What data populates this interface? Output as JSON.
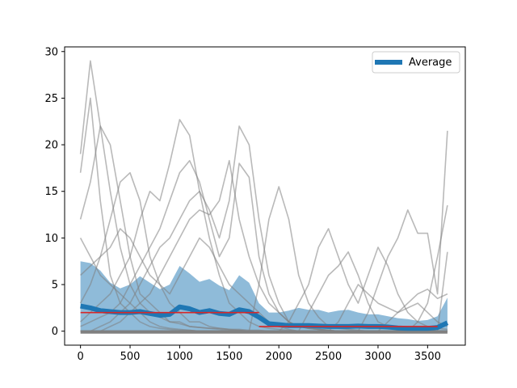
{
  "chart_data": {
    "type": "line",
    "title": "",
    "xlabel": "",
    "ylabel": "",
    "xlim": [
      -160,
      3880
    ],
    "ylim": [
      -1.5,
      30.5
    ],
    "xticks": [
      0,
      500,
      1000,
      1500,
      2000,
      2500,
      3000,
      3500
    ],
    "yticks": [
      0,
      5,
      10,
      15,
      20,
      25,
      30
    ],
    "xtick_labels": [
      "0",
      "500",
      "1000",
      "1500",
      "2000",
      "2500",
      "3000",
      "3500"
    ],
    "ytick_labels": [
      "0",
      "5",
      "10",
      "15",
      "20",
      "25",
      "30"
    ],
    "grid": false,
    "legend": {
      "position": "upper right",
      "entries": [
        "Average"
      ]
    },
    "colors": {
      "average": "#1f77b4",
      "band": "#1f77b4",
      "individual": "#808080",
      "segment": "#d62728"
    },
    "x": [
      0,
      100,
      200,
      300,
      400,
      500,
      600,
      700,
      800,
      900,
      1000,
      1100,
      1200,
      1300,
      1400,
      1500,
      1600,
      1700,
      1800,
      1900,
      2000,
      2100,
      2200,
      2300,
      2400,
      2500,
      2600,
      2700,
      2800,
      2900,
      3000,
      3100,
      3200,
      3300,
      3400,
      3500,
      3600,
      3700
    ],
    "series": [
      {
        "name": "Average",
        "role": "mean",
        "values": [
          2.7,
          2.5,
          2.2,
          2.1,
          2.0,
          2.0,
          2.1,
          1.9,
          1.7,
          1.8,
          2.6,
          2.4,
          2.0,
          2.2,
          1.9,
          1.8,
          2.3,
          2.1,
          1.5,
          0.8,
          0.7,
          0.6,
          0.6,
          0.6,
          0.55,
          0.5,
          0.5,
          0.5,
          0.55,
          0.5,
          0.5,
          0.45,
          0.35,
          0.3,
          0.3,
          0.3,
          0.4,
          0.9
        ],
        "band_upper": [
          7.5,
          7.3,
          6.5,
          5.2,
          4.6,
          5.0,
          5.9,
          5.2,
          4.5,
          5.0,
          7.0,
          6.2,
          5.3,
          5.6,
          4.9,
          4.4,
          6.0,
          5.2,
          3.0,
          2.0,
          2.0,
          2.2,
          2.5,
          2.3,
          2.3,
          2.0,
          2.2,
          2.3,
          2.0,
          1.8,
          1.8,
          1.6,
          1.4,
          1.3,
          1.1,
          1.2,
          1.6,
          3.6
        ],
        "band_lower": [
          0,
          0,
          0,
          0,
          0,
          0,
          0,
          0,
          0,
          0,
          0,
          0,
          0,
          0,
          0,
          0,
          0,
          0,
          0,
          0,
          0,
          0,
          0,
          0,
          0,
          0,
          0,
          0,
          0,
          0,
          0,
          0,
          0,
          0,
          0,
          0,
          0,
          0
        ]
      },
      {
        "role": "individual",
        "values": [
          19,
          29,
          22,
          15,
          9,
          5,
          3,
          2,
          1.5,
          1,
          0.8,
          0.5,
          0.4,
          0.3,
          0.3,
          0.2,
          0.2,
          0.1,
          0.1,
          0,
          0,
          0,
          0,
          0,
          0,
          0,
          0,
          0,
          0,
          0,
          0,
          0,
          0,
          0,
          0,
          0,
          0,
          0
        ]
      },
      {
        "role": "individual",
        "values": [
          17,
          25,
          14,
          6,
          3,
          2,
          1,
          0.5,
          0.3,
          0.2,
          0.1,
          0.1,
          0,
          0,
          0,
          0,
          0,
          0,
          0,
          0,
          0,
          0,
          0,
          0,
          0,
          0,
          0,
          0,
          0,
          0,
          0,
          0,
          0,
          0,
          0,
          0,
          0,
          0
        ]
      },
      {
        "role": "individual",
        "values": [
          12,
          16,
          22,
          20,
          14,
          8,
          4,
          3,
          2,
          1,
          1,
          0.5,
          0.4,
          0.3,
          0.2,
          0.1,
          0.1,
          0,
          0,
          0,
          0,
          0,
          0,
          0,
          0,
          0,
          0,
          0,
          0,
          0,
          0,
          0,
          0,
          0,
          0,
          0,
          0,
          0
        ]
      },
      {
        "role": "individual",
        "values": [
          3,
          5,
          8,
          12,
          16,
          17,
          14,
          8,
          5,
          3,
          2,
          1,
          1,
          0.5,
          0.3,
          0.2,
          0.1,
          0,
          0,
          0,
          0,
          0,
          0,
          0,
          0,
          0,
          0,
          0,
          0,
          0,
          0,
          0,
          0,
          0,
          0,
          0,
          0,
          0
        ]
      },
      {
        "role": "individual",
        "values": [
          1,
          2,
          3,
          4,
          6,
          8,
          12,
          15,
          14,
          18,
          22.7,
          21,
          15,
          10,
          6,
          3,
          2,
          1,
          0.5,
          0.3,
          0.2,
          0.1,
          0,
          0,
          0,
          0,
          0,
          0,
          0,
          0,
          0,
          0,
          0,
          0,
          0,
          0,
          0,
          0
        ]
      },
      {
        "role": "individual",
        "values": [
          0.5,
          1,
          1.5,
          2,
          3,
          5,
          7,
          9,
          11,
          14,
          17,
          18.3,
          16,
          12,
          8,
          10,
          18,
          16.5,
          8,
          4,
          2,
          1,
          0.5,
          0.3,
          0.2,
          0.1,
          0,
          0,
          0,
          0,
          0,
          0,
          0,
          0,
          0,
          0,
          0,
          0
        ]
      },
      {
        "role": "individual",
        "values": [
          0,
          0,
          0.5,
          1,
          2,
          3,
          5,
          7,
          9,
          10,
          12,
          14,
          15,
          13,
          10,
          14,
          22,
          20,
          12,
          6,
          3,
          1,
          0.5,
          0.3,
          0.2,
          0.1,
          0,
          0,
          0,
          0,
          0,
          0,
          0,
          0,
          0,
          0,
          0,
          0
        ]
      },
      {
        "role": "individual",
        "values": [
          0,
          0,
          0,
          0.5,
          1,
          2,
          3,
          4,
          6,
          8,
          10,
          12,
          13,
          12.5,
          14,
          18.3,
          12,
          8,
          5,
          3,
          2,
          1,
          0.5,
          0.3,
          0.2,
          0.1,
          0,
          0,
          0,
          0,
          0,
          0,
          0,
          0,
          0,
          0,
          0,
          0
        ]
      },
      {
        "role": "individual",
        "values": [
          0,
          0,
          0,
          0,
          0,
          0,
          0,
          0,
          0,
          0,
          0,
          0,
          0,
          0,
          0,
          0,
          0,
          0,
          5,
          12,
          15.5,
          12,
          6,
          3,
          1.5,
          0.5,
          0.3,
          0.2,
          0.1,
          0,
          0,
          0,
          0,
          0,
          0,
          0,
          0,
          0
        ]
      },
      {
        "role": "individual",
        "values": [
          0,
          0,
          0,
          0,
          0,
          0,
          0,
          0,
          0,
          0,
          0,
          0,
          0,
          0,
          0,
          0,
          0,
          0,
          0,
          0,
          0,
          1,
          3,
          5,
          9,
          11,
          8,
          5,
          3,
          6,
          9,
          7,
          4,
          2,
          1,
          0.5,
          0.3,
          0.2
        ]
      },
      {
        "role": "individual",
        "values": [
          0,
          0,
          0,
          0,
          0,
          0,
          0,
          0,
          0,
          0,
          0,
          0,
          0,
          0,
          0,
          0,
          0,
          0,
          0,
          0,
          0,
          0,
          0,
          0,
          0,
          0,
          0,
          0,
          0,
          2,
          5,
          8,
          10,
          13,
          10.5,
          10.5,
          4,
          21.5
        ]
      },
      {
        "role": "individual",
        "values": [
          0,
          0,
          0,
          0,
          0,
          0,
          0,
          0,
          0,
          0,
          0,
          0,
          0,
          0,
          0,
          0,
          0,
          0,
          0,
          0,
          0,
          0,
          0,
          0,
          0,
          0,
          0,
          0,
          0,
          0,
          0,
          0,
          0,
          0,
          1,
          3,
          8,
          13.5
        ]
      },
      {
        "role": "individual",
        "values": [
          10,
          8,
          6,
          5,
          4,
          3,
          2,
          1,
          0.5,
          0.3,
          0.2,
          0.1,
          0,
          0,
          0,
          0,
          0,
          0,
          0,
          0,
          0,
          0,
          0,
          0,
          0,
          0,
          0,
          0,
          0,
          0,
          0,
          0,
          0,
          0,
          0,
          0,
          0,
          0
        ]
      },
      {
        "role": "individual",
        "values": [
          6,
          7,
          8,
          9,
          11,
          10,
          8,
          6,
          5,
          4,
          6,
          8,
          10,
          9,
          7,
          5,
          4,
          3,
          2,
          1,
          0.5,
          0.2,
          0,
          0,
          0,
          0,
          0,
          0,
          0,
          0,
          0,
          0,
          0,
          0,
          0,
          0,
          0,
          0
        ]
      },
      {
        "role": "individual",
        "values": [
          0,
          0,
          0,
          0,
          0,
          0,
          0,
          0,
          0,
          0,
          0,
          0,
          0,
          0,
          0,
          0,
          0,
          0,
          0,
          0,
          0,
          0,
          0,
          2,
          4,
          6,
          7,
          8.5,
          6,
          3,
          1,
          0.5,
          0.2,
          0,
          0,
          0,
          0,
          0
        ]
      },
      {
        "role": "individual",
        "values": [
          0,
          0,
          0,
          0,
          0,
          0,
          0,
          0,
          0,
          0,
          0,
          0,
          0,
          0,
          0,
          0,
          0,
          0,
          0,
          0,
          0,
          0,
          0,
          0,
          0,
          0,
          0,
          0,
          0,
          0,
          0,
          1,
          2,
          3,
          4,
          4.5,
          3.5,
          4
        ]
      },
      {
        "role": "individual",
        "values": [
          0,
          0,
          0,
          0,
          0,
          0,
          0,
          0,
          0,
          0,
          0,
          0,
          0,
          0,
          0,
          0,
          0,
          0,
          0,
          0,
          0,
          0,
          0,
          0,
          0,
          0,
          1,
          3,
          5,
          4,
          3,
          2.5,
          2,
          2.5,
          3,
          2,
          1,
          0.5
        ]
      },
      {
        "role": "individual",
        "values": [
          0,
          0,
          0,
          0,
          0,
          0,
          0,
          0,
          0,
          0,
          0,
          0,
          0,
          0,
          0,
          0,
          0,
          0,
          0,
          0,
          0,
          0,
          0,
          0,
          0,
          0,
          0,
          0,
          0,
          0,
          0,
          0,
          0,
          0,
          0,
          0,
          0,
          8.5
        ]
      }
    ],
    "segments": [
      {
        "x_start": 0,
        "x_end": 1800,
        "value": 2.0
      },
      {
        "x_start": 1800,
        "x_end": 3600,
        "value": 0.5
      }
    ]
  }
}
